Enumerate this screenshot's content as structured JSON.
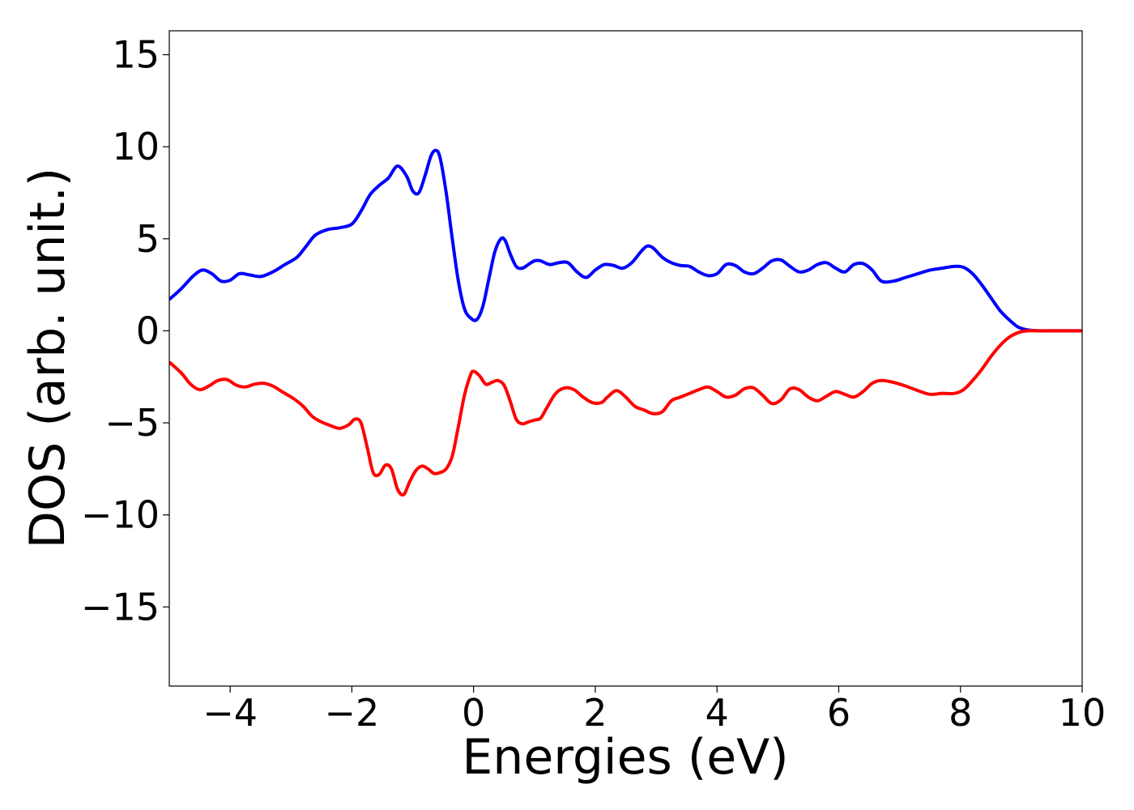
{
  "chart_data": {
    "type": "line",
    "xlabel": "Energies (eV)",
    "ylabel": "DOS (arb. unit.)",
    "xlim": [
      -5,
      10
    ],
    "ylim": [
      -19.3,
      16.3
    ],
    "xticks": [
      -4,
      -2,
      0,
      2,
      4,
      6,
      8,
      10
    ],
    "yticks": [
      15,
      10,
      5,
      0,
      -5,
      -10,
      -15
    ],
    "xtick_labels": [
      "−4",
      "−2",
      "0",
      "2",
      "4",
      "6",
      "8",
      "10"
    ],
    "ytick_labels": [
      "15",
      "10",
      "5",
      "0",
      "−5",
      "−10",
      "−15"
    ],
    "grid": false,
    "series": [
      {
        "color": "#0000ff",
        "x": [
          -5.0,
          -4.8,
          -4.6,
          -4.45,
          -4.3,
          -4.15,
          -4.0,
          -3.85,
          -3.7,
          -3.5,
          -3.3,
          -3.1,
          -2.9,
          -2.75,
          -2.6,
          -2.4,
          -2.2,
          -2.0,
          -1.85,
          -1.7,
          -1.55,
          -1.4,
          -1.25,
          -1.1,
          -1.0,
          -0.9,
          -0.8,
          -0.7,
          -0.62,
          -0.55,
          -0.45,
          -0.35,
          -0.25,
          -0.15,
          -0.05,
          0.05,
          0.15,
          0.25,
          0.35,
          0.45,
          0.52,
          0.6,
          0.7,
          0.8,
          0.9,
          1.0,
          1.1,
          1.25,
          1.4,
          1.55,
          1.7,
          1.85,
          2.0,
          2.15,
          2.3,
          2.45,
          2.6,
          2.75,
          2.85,
          2.95,
          3.1,
          3.25,
          3.4,
          3.55,
          3.7,
          3.85,
          4.0,
          4.15,
          4.3,
          4.45,
          4.6,
          4.75,
          4.9,
          5.05,
          5.2,
          5.35,
          5.5,
          5.65,
          5.8,
          5.95,
          6.1,
          6.25,
          6.4,
          6.55,
          6.7,
          6.9,
          7.1,
          7.3,
          7.5,
          7.7,
          7.9,
          8.05,
          8.2,
          8.35,
          8.5,
          8.65,
          8.8,
          8.95,
          9.1,
          9.3,
          9.5,
          10.0
        ],
        "y": [
          1.7,
          2.3,
          3.0,
          3.3,
          3.1,
          2.7,
          2.75,
          3.1,
          3.05,
          2.95,
          3.2,
          3.6,
          4.0,
          4.6,
          5.2,
          5.5,
          5.6,
          5.8,
          6.5,
          7.4,
          7.9,
          8.3,
          8.95,
          8.4,
          7.6,
          7.5,
          8.4,
          9.5,
          9.8,
          9.4,
          7.5,
          5.0,
          2.7,
          1.2,
          0.7,
          0.6,
          1.3,
          2.8,
          4.3,
          5.0,
          4.9,
          4.2,
          3.5,
          3.4,
          3.6,
          3.8,
          3.8,
          3.6,
          3.7,
          3.7,
          3.2,
          2.9,
          3.3,
          3.6,
          3.55,
          3.4,
          3.7,
          4.3,
          4.6,
          4.5,
          4.0,
          3.7,
          3.55,
          3.5,
          3.2,
          3.0,
          3.1,
          3.6,
          3.55,
          3.2,
          3.1,
          3.4,
          3.8,
          3.85,
          3.5,
          3.2,
          3.3,
          3.6,
          3.7,
          3.4,
          3.2,
          3.6,
          3.65,
          3.3,
          2.7,
          2.7,
          2.9,
          3.1,
          3.3,
          3.4,
          3.5,
          3.45,
          3.1,
          2.5,
          1.8,
          1.1,
          0.6,
          0.2,
          0.05,
          0.0,
          0.0,
          0.0
        ]
      },
      {
        "color": "#ff0000",
        "x": [
          -5.0,
          -4.8,
          -4.65,
          -4.5,
          -4.35,
          -4.2,
          -4.05,
          -3.9,
          -3.75,
          -3.6,
          -3.45,
          -3.3,
          -3.15,
          -2.95,
          -2.8,
          -2.65,
          -2.5,
          -2.35,
          -2.2,
          -2.05,
          -1.95,
          -1.85,
          -1.75,
          -1.65,
          -1.55,
          -1.45,
          -1.35,
          -1.25,
          -1.15,
          -1.05,
          -0.95,
          -0.85,
          -0.75,
          -0.65,
          -0.55,
          -0.45,
          -0.35,
          -0.25,
          -0.15,
          -0.05,
          0.0,
          0.1,
          0.2,
          0.3,
          0.4,
          0.5,
          0.6,
          0.7,
          0.8,
          0.9,
          1.0,
          1.1,
          1.2,
          1.35,
          1.5,
          1.65,
          1.8,
          1.95,
          2.1,
          2.2,
          2.35,
          2.5,
          2.65,
          2.8,
          2.95,
          3.1,
          3.25,
          3.4,
          3.55,
          3.7,
          3.85,
          4.0,
          4.15,
          4.3,
          4.45,
          4.6,
          4.75,
          4.9,
          5.05,
          5.2,
          5.35,
          5.5,
          5.65,
          5.8,
          5.95,
          6.1,
          6.25,
          6.4,
          6.55,
          6.7,
          6.9,
          7.1,
          7.3,
          7.5,
          7.7,
          7.9,
          8.05,
          8.2,
          8.35,
          8.5,
          8.65,
          8.8,
          8.95,
          9.1,
          9.3,
          9.5,
          10.0
        ],
        "y": [
          -1.7,
          -2.3,
          -2.9,
          -3.2,
          -3.0,
          -2.7,
          -2.65,
          -2.95,
          -3.05,
          -2.9,
          -2.85,
          -3.0,
          -3.3,
          -3.7,
          -4.1,
          -4.65,
          -4.95,
          -5.15,
          -5.3,
          -5.1,
          -4.8,
          -5.0,
          -6.3,
          -7.7,
          -7.8,
          -7.3,
          -7.5,
          -8.6,
          -8.9,
          -8.2,
          -7.6,
          -7.35,
          -7.5,
          -7.75,
          -7.7,
          -7.5,
          -6.8,
          -5.2,
          -3.5,
          -2.4,
          -2.2,
          -2.45,
          -2.9,
          -2.8,
          -2.7,
          -2.95,
          -3.8,
          -4.8,
          -5.05,
          -4.95,
          -4.85,
          -4.75,
          -4.2,
          -3.4,
          -3.1,
          -3.2,
          -3.6,
          -3.9,
          -3.9,
          -3.6,
          -3.25,
          -3.6,
          -4.1,
          -4.3,
          -4.5,
          -4.4,
          -3.8,
          -3.6,
          -3.4,
          -3.2,
          -3.05,
          -3.3,
          -3.6,
          -3.5,
          -3.15,
          -3.1,
          -3.5,
          -3.95,
          -3.75,
          -3.15,
          -3.2,
          -3.6,
          -3.8,
          -3.55,
          -3.3,
          -3.45,
          -3.6,
          -3.3,
          -2.85,
          -2.7,
          -2.8,
          -3.0,
          -3.25,
          -3.45,
          -3.4,
          -3.4,
          -3.2,
          -2.7,
          -2.1,
          -1.4,
          -0.8,
          -0.35,
          -0.1,
          0.0,
          0.0,
          0.0,
          0.0
        ]
      }
    ]
  }
}
